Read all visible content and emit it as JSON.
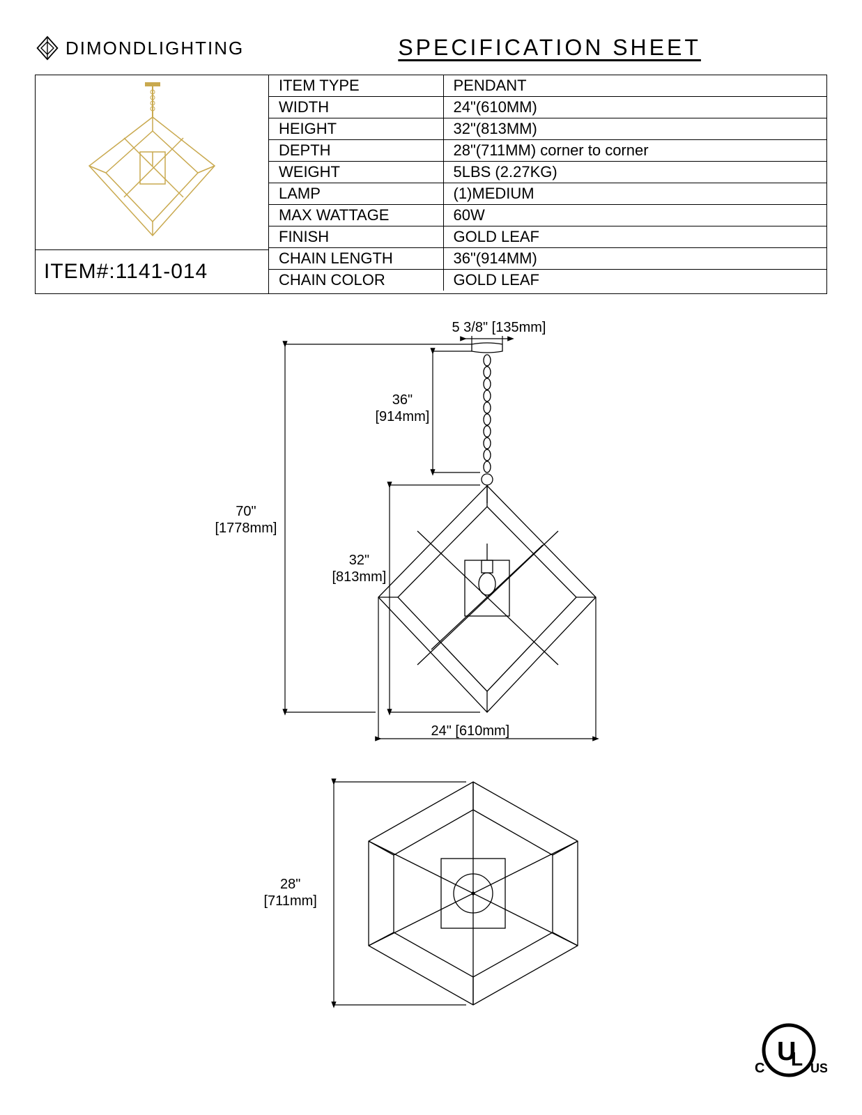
{
  "brand": {
    "primary": "DIMOND",
    "secondary": "LIGHTING"
  },
  "title": "SPECIFICATION  SHEET",
  "item_number_label": "ITEM#:",
  "item_number": "1141-014",
  "specs": [
    {
      "label": "ITEM TYPE",
      "value": "PENDANT"
    },
    {
      "label": "WIDTH",
      "value": "24\"(610MM)"
    },
    {
      "label": "HEIGHT",
      "value": "32\"(813MM)"
    },
    {
      "label": "DEPTH",
      "value": "28\"(711MM)    corner to corner"
    },
    {
      "label": "WEIGHT",
      "value": "5LBS (2.27KG)"
    },
    {
      "label": "LAMP",
      "value": " (1)MEDIUM"
    },
    {
      "label": "MAX WATTAGE",
      "value": "60W"
    },
    {
      "label": "FINISH",
      "value": "GOLD LEAF"
    },
    {
      "label": "CHAIN LENGTH",
      "value": "36\"(914MM)"
    },
    {
      "label": "CHAIN COLOR",
      "value": "GOLD LEAF"
    }
  ],
  "diagram": {
    "canopy": {
      "in": "5 3/8\"",
      "mm": "[135mm]"
    },
    "chain": {
      "in": "36\"",
      "mm": "[914mm]"
    },
    "overall": {
      "in": "70\"",
      "mm": "[1778mm]"
    },
    "body_h": {
      "in": "32\"",
      "mm": "[813mm]"
    },
    "width": {
      "label": "24\" [610mm]"
    },
    "depth": {
      "in": "28\"",
      "mm": "[711mm]"
    }
  },
  "colors": {
    "gold": "#c9a94f",
    "line": "#000000"
  },
  "ul": {
    "c": "C",
    "us": "US"
  }
}
